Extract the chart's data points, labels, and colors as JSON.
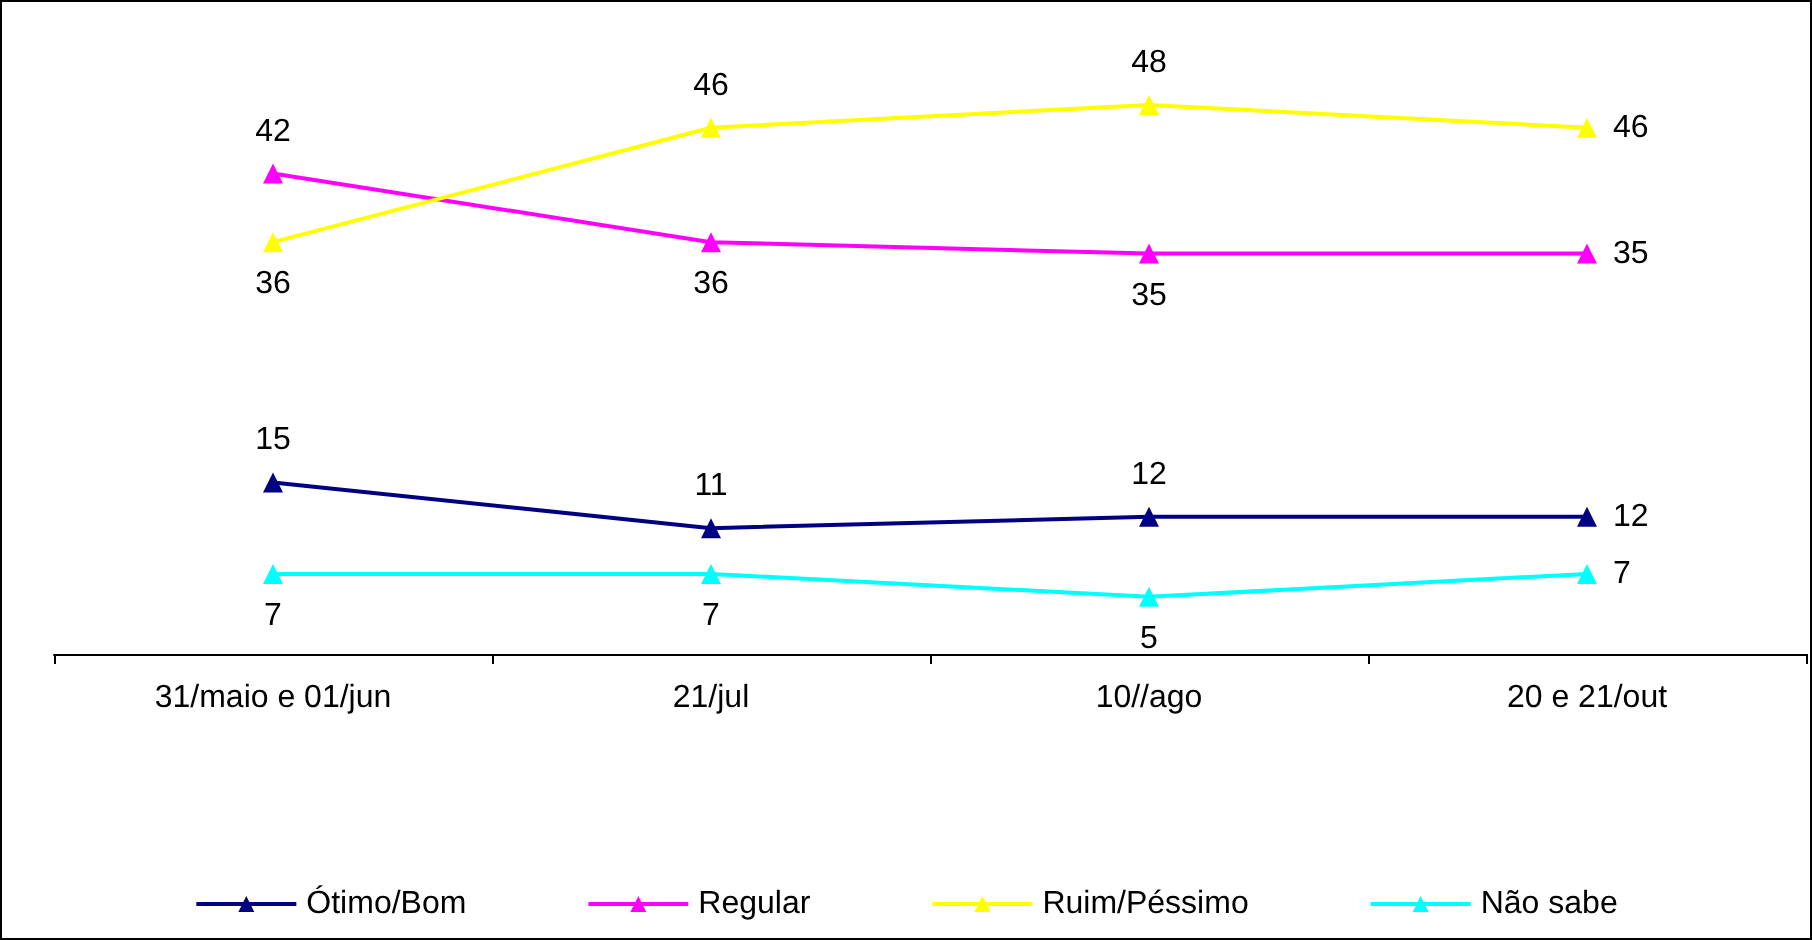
{
  "chart_data": {
    "type": "line",
    "categories": [
      "31/maio e 01/jun",
      "21/jul",
      "10//ago",
      "20 e 21/out"
    ],
    "series": [
      {
        "name": "Ótimo/Bom",
        "color": "#000080",
        "values": [
          15,
          11,
          12,
          12
        ]
      },
      {
        "name": "Regular",
        "color": "#ff00ff",
        "values": [
          42,
          36,
          35,
          35
        ]
      },
      {
        "name": "Ruim/Péssimo",
        "color": "#ffff00",
        "values": [
          36,
          46,
          48,
          46
        ]
      },
      {
        "name": "Não sabe",
        "color": "#00ffff",
        "values": [
          7,
          7,
          5,
          7
        ]
      }
    ],
    "data_labels": true,
    "marker": "triangle",
    "legend": "bottom",
    "grid": false
  }
}
